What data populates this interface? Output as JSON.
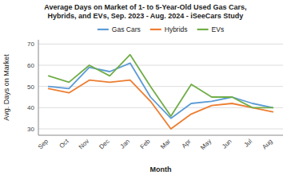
{
  "chart_data": {
    "type": "line",
    "title": "Average Days on Market of 1- to 5-Year-Old Used Gas Cars,\nHybrids, and EVs, Sep. 2023 - Aug. 2024 - iSeeCars Study",
    "x_label": "Month",
    "y_label": "Avg. Days on Market",
    "categories": [
      "Sep",
      "Oct",
      "Nov",
      "Dec",
      "Jan",
      "Feb",
      "Mar",
      "Apr",
      "May",
      "Jun",
      "Jul",
      "Aug"
    ],
    "series": [
      {
        "name": "Gas Cars",
        "color": "#5b9bd5",
        "values": [
          50,
          49,
          59,
          57,
          61,
          45,
          35,
          42,
          43,
          45,
          42,
          40
        ]
      },
      {
        "name": "Hybrids",
        "color": "#ed7d31",
        "values": [
          49,
          47,
          53,
          52,
          53,
          43,
          30,
          37,
          41,
          42,
          40,
          38
        ]
      },
      {
        "name": "EVs",
        "color": "#70ad47",
        "values": [
          55,
          52,
          60,
          55,
          65,
          50,
          36,
          51,
          45,
          45,
          40,
          40
        ]
      }
    ],
    "ylim": [
      27,
      72
    ],
    "yticks": [
      30,
      40,
      50,
      60,
      70
    ],
    "grid": true,
    "legend": "top"
  }
}
